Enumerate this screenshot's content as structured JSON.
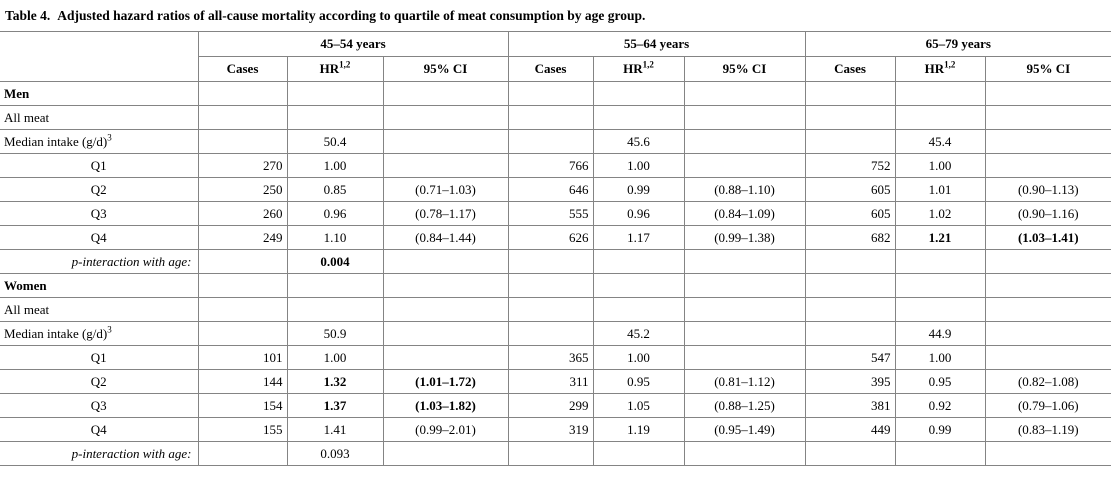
{
  "title": {
    "prefix": "Table 4.",
    "caption": "Adjusted hazard ratios of all-cause mortality according to quartile of meat consumption by age group."
  },
  "table": {
    "age_groups": [
      "45–54 years",
      "55–64 years",
      "65–79 years"
    ],
    "column_headers": {
      "cases": "Cases",
      "hr": "HR",
      "hr_sup": "1,2",
      "ci": "95% CI"
    },
    "rows": [
      {
        "label": "Men",
        "label_style": "bold-left",
        "cells": [
          "",
          "",
          "",
          "",
          "",
          "",
          "",
          "",
          ""
        ]
      },
      {
        "label": "All meat",
        "label_style": "left",
        "cells": [
          "",
          "",
          "",
          "",
          "",
          "",
          "",
          "",
          ""
        ]
      },
      {
        "label": "Median intake (g/d)",
        "label_sup": "3",
        "label_style": "left",
        "cells": [
          "",
          "50.4",
          "",
          "",
          "45.6",
          "",
          "",
          "45.4",
          ""
        ]
      },
      {
        "label": "Q1",
        "label_style": "center",
        "cells": [
          "270",
          "1.00",
          "",
          "766",
          "1.00",
          "",
          "752",
          "1.00",
          ""
        ]
      },
      {
        "label": "Q2",
        "label_style": "center",
        "cells": [
          "250",
          "0.85",
          "(0.71–1.03)",
          "646",
          "0.99",
          "(0.88–1.10)",
          "605",
          "1.01",
          "(0.90–1.13)"
        ]
      },
      {
        "label": "Q3",
        "label_style": "center",
        "cells": [
          "260",
          "0.96",
          "(0.78–1.17)",
          "555",
          "0.96",
          "(0.84–1.09)",
          "605",
          "1.02",
          "(0.90–1.16)"
        ]
      },
      {
        "label": "Q4",
        "label_style": "center",
        "cells": [
          "249",
          "1.10",
          "(0.84–1.44)",
          "626",
          "1.17",
          "(0.99–1.38)",
          "682",
          "1.21",
          "(1.03–1.41)"
        ],
        "bold_cells": [
          7,
          8
        ]
      },
      {
        "label": "p-interaction with age:",
        "label_style": "italic-right",
        "cells": [
          "",
          "0.004",
          "",
          "",
          "",
          "",
          "",
          "",
          ""
        ],
        "bold_cells": [
          1
        ]
      },
      {
        "label": "Women",
        "label_style": "bold-left",
        "cells": [
          "",
          "",
          "",
          "",
          "",
          "",
          "",
          "",
          ""
        ]
      },
      {
        "label": "All meat",
        "label_style": "left",
        "cells": [
          "",
          "",
          "",
          "",
          "",
          "",
          "",
          "",
          ""
        ]
      },
      {
        "label": "Median intake (g/d)",
        "label_sup": "3",
        "label_style": "left",
        "cells": [
          "",
          "50.9",
          "",
          "",
          "45.2",
          "",
          "",
          "44.9",
          ""
        ]
      },
      {
        "label": "Q1",
        "label_style": "center",
        "cells": [
          "101",
          "1.00",
          "",
          "365",
          "1.00",
          "",
          "547",
          "1.00",
          ""
        ]
      },
      {
        "label": "Q2",
        "label_style": "center",
        "cells": [
          "144",
          "1.32",
          "(1.01–1.72)",
          "311",
          "0.95",
          "(0.81–1.12)",
          "395",
          "0.95",
          "(0.82–1.08)"
        ],
        "bold_cells": [
          1,
          2
        ]
      },
      {
        "label": "Q3",
        "label_style": "center",
        "cells": [
          "154",
          "1.37",
          "(1.03–1.82)",
          "299",
          "1.05",
          "(0.88–1.25)",
          "381",
          "0.92",
          "(0.79–1.06)"
        ],
        "bold_cells": [
          1,
          2
        ]
      },
      {
        "label": "Q4",
        "label_style": "center",
        "cells": [
          "155",
          "1.41",
          "(0.99–2.01)",
          "319",
          "1.19",
          "(0.95–1.49)",
          "449",
          "0.99",
          "(0.83–1.19)"
        ]
      },
      {
        "label": "p-interaction with age:",
        "label_style": "italic-right",
        "cells": [
          "",
          "0.093",
          "",
          "",
          "",
          "",
          "",
          "",
          ""
        ]
      }
    ],
    "border_color": "#848484"
  }
}
